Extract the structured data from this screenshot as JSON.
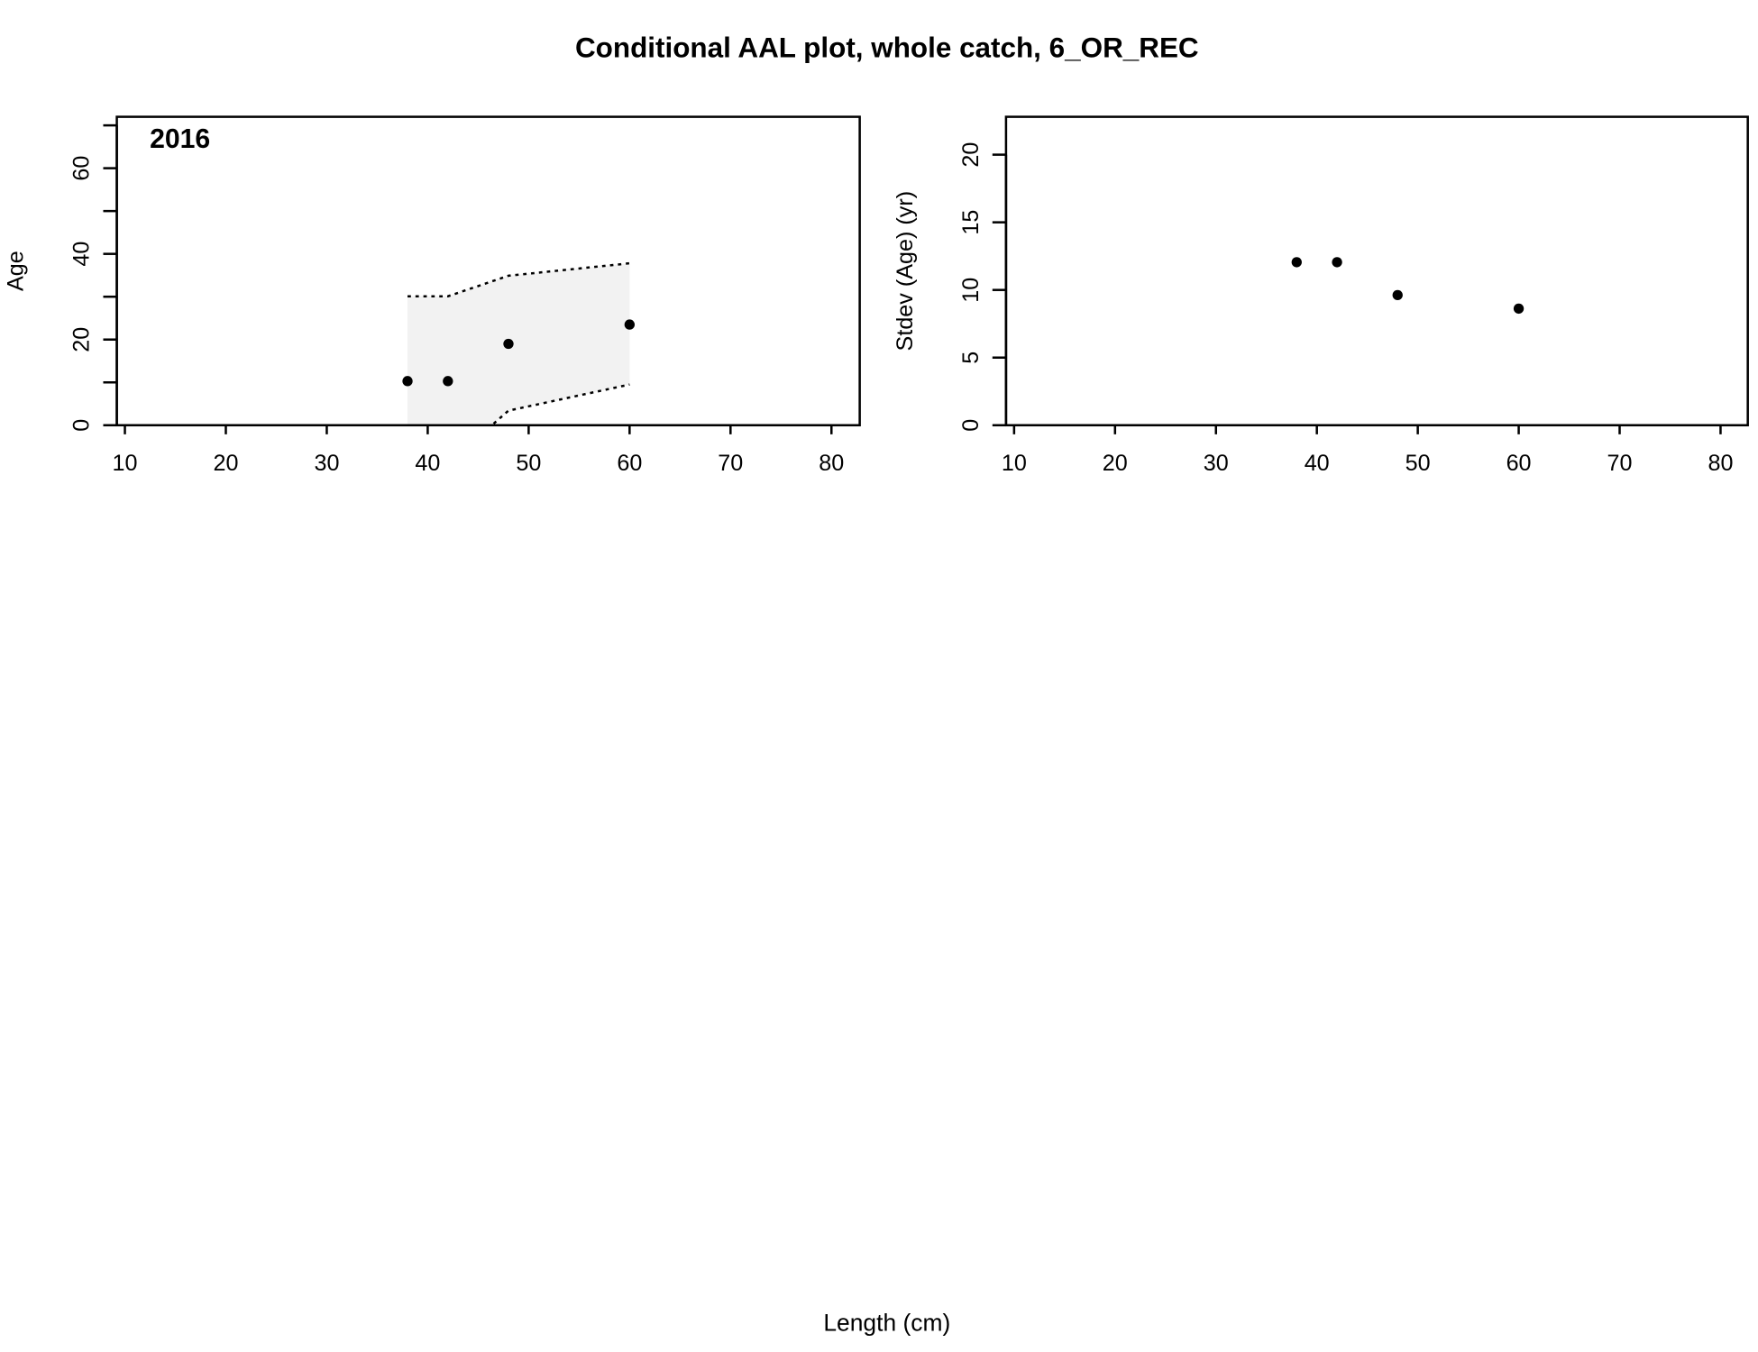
{
  "title": "Conditional AAL plot, whole catch, 6_OR_REC",
  "xlabel": "Length (cm)",
  "chart_data": [
    {
      "type": "scatter-band",
      "label": "2016",
      "ylabel": "Age",
      "x": [
        38,
        42,
        48,
        60
      ],
      "values": [
        10.3,
        10.3,
        19.0,
        23.5
      ],
      "upper": [
        30.1,
        30.1,
        34.9,
        37.8
      ],
      "lower": [
        -12.0,
        -9.0,
        3.4,
        9.5
      ],
      "color": "#000000",
      "band_color": "#f2f2f2",
      "xlim": [
        9.2,
        82.8
      ],
      "xticks": [
        10,
        20,
        30,
        40,
        50,
        60,
        70,
        80
      ],
      "ylim": [
        0,
        72
      ],
      "yticks": [
        0,
        20,
        40,
        60
      ],
      "yminor": [
        10,
        30,
        50,
        70
      ]
    },
    {
      "type": "scatter",
      "ylabel": "Stdev (Age) (yr)",
      "x": [
        38,
        42,
        48,
        60
      ],
      "values": [
        12.05,
        12.05,
        9.62,
        8.62
      ],
      "color": "#000000",
      "xlim": [
        9.2,
        82.7
      ],
      "xticks": [
        10,
        20,
        30,
        40,
        50,
        60,
        70,
        80
      ],
      "ylim": [
        0,
        22.8
      ],
      "yticks": [
        0,
        5,
        10,
        15,
        20
      ]
    }
  ]
}
